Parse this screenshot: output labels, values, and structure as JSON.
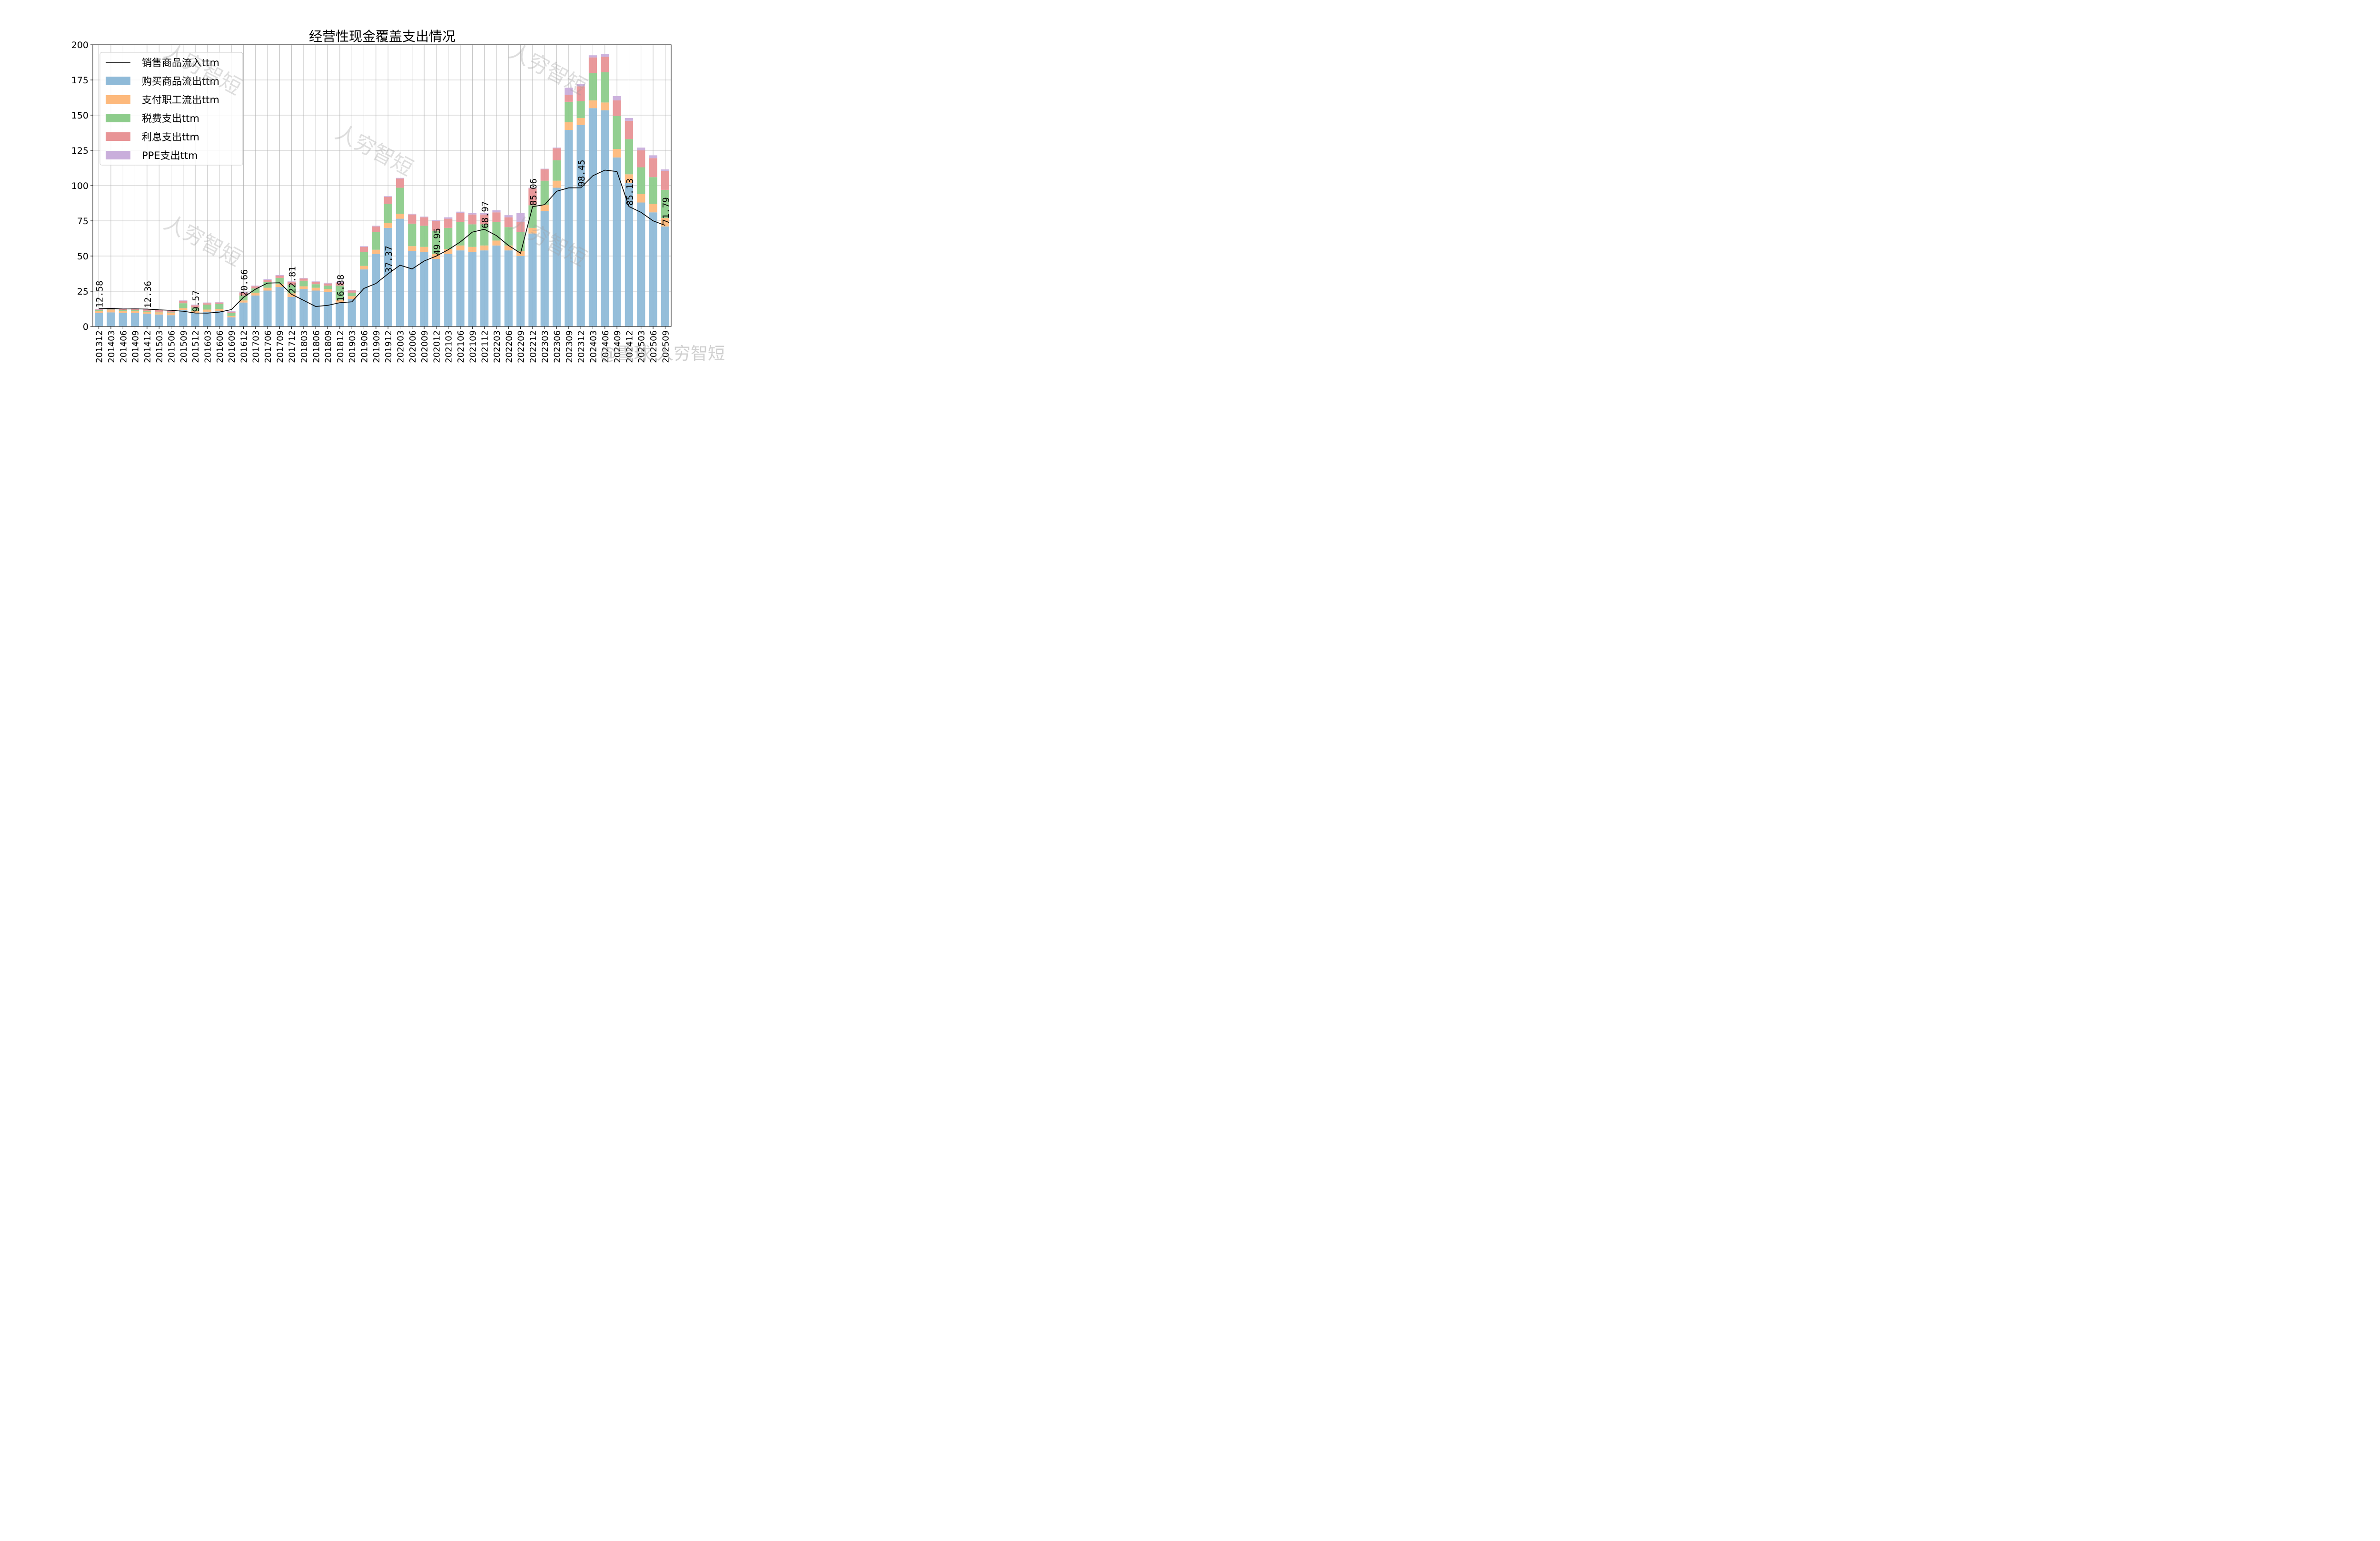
{
  "watermark": "人穷智短",
  "footer_watermark": "@雪球 人穷智短",
  "chart_data": {
    "type": "bar",
    "title": "经营性现金覆盖支出情况",
    "ylim": [
      0,
      200
    ],
    "yticks": [
      0,
      25,
      50,
      75,
      100,
      125,
      150,
      175,
      200
    ],
    "grid": true,
    "legend_placement": "top-left",
    "categories": [
      "201312",
      "201403",
      "201406",
      "201409",
      "201412",
      "201503",
      "201506",
      "201509",
      "201512",
      "201603",
      "201606",
      "201609",
      "201612",
      "201703",
      "201706",
      "201709",
      "201712",
      "201803",
      "201806",
      "201809",
      "201812",
      "201903",
      "201906",
      "201909",
      "201912",
      "202003",
      "202006",
      "202009",
      "202012",
      "202103",
      "202106",
      "202109",
      "202112",
      "202203",
      "202206",
      "202209",
      "202212",
      "202303",
      "202306",
      "202309",
      "202312",
      "202403",
      "202406",
      "202409",
      "202412",
      "202503",
      "202506",
      "202509"
    ],
    "line": {
      "name": "销售商品流入ttm",
      "color": "#000000",
      "values": [
        12.58,
        12.8,
        12.4,
        12.5,
        12.36,
        11.8,
        11.5,
        10.8,
        9.57,
        9.5,
        10.2,
        12.0,
        20.66,
        26.5,
        30.8,
        31.0,
        22.81,
        18.5,
        14.2,
        15.0,
        16.88,
        17.5,
        27.0,
        30.5,
        37.37,
        43.5,
        40.8,
        46.5,
        49.95,
        54.5,
        60.0,
        67.0,
        68.97,
        64.5,
        57.5,
        52.0,
        85.06,
        86.5,
        96.0,
        98.4,
        98.45,
        107.0,
        111.0,
        110.0,
        85.13,
        81.0,
        75.0,
        71.79
      ],
      "labels": [
        {
          "index": 0,
          "text": "12.58"
        },
        {
          "index": 4,
          "text": "12.36"
        },
        {
          "index": 8,
          "text": "9.57"
        },
        {
          "index": 12,
          "text": "20.66"
        },
        {
          "index": 16,
          "text": "22.81"
        },
        {
          "index": 20,
          "text": "16.88"
        },
        {
          "index": 24,
          "text": "37.37"
        },
        {
          "index": 28,
          "text": "49.95"
        },
        {
          "index": 32,
          "text": "68.97"
        },
        {
          "index": 36,
          "text": "85.06"
        },
        {
          "index": 40,
          "text": "98.45"
        },
        {
          "index": 44,
          "text": "85.13"
        },
        {
          "index": 47,
          "text": "71.79"
        }
      ]
    },
    "series": [
      {
        "name": "购买商品流出ttm",
        "color": "#8fbad8",
        "values": [
          9.5,
          10.0,
          9.5,
          9.5,
          9.0,
          8.5,
          8.0,
          11.5,
          9.5,
          10.5,
          11.0,
          6.5,
          17.0,
          22.0,
          25.5,
          28.0,
          21.0,
          26.5,
          25.5,
          24.5,
          17.0,
          19.5,
          40.5,
          51.5,
          70.0,
          76.5,
          53.5,
          53.0,
          48.0,
          51.5,
          54.0,
          53.0,
          54.0,
          57.5,
          54.0,
          50.0,
          66.0,
          82.0,
          98.5,
          139.5,
          143.0,
          155.0,
          153.5,
          120.0,
          102.0,
          88.0,
          81.0,
          71.0
        ]
      },
      {
        "name": "支付职工流出ttm",
        "color": "#fdb97c",
        "values": [
          1.5,
          1.5,
          1.5,
          1.5,
          1.5,
          1.5,
          1.5,
          1.5,
          1.5,
          1.5,
          1.5,
          1.0,
          1.5,
          2.0,
          2.0,
          2.0,
          2.5,
          2.0,
          2.0,
          2.0,
          2.0,
          2.0,
          2.5,
          3.0,
          3.5,
          3.5,
          3.5,
          3.5,
          3.5,
          3.5,
          3.5,
          3.5,
          3.5,
          3.5,
          3.5,
          3.5,
          4.0,
          4.5,
          5.0,
          5.5,
          5.0,
          5.5,
          5.5,
          6.0,
          6.0,
          6.0,
          6.0,
          6.0
        ]
      },
      {
        "name": "税费支出ttm",
        "color": "#8dcc8b",
        "values": [
          0.5,
          0.5,
          0.5,
          0.5,
          0.5,
          0.5,
          0.5,
          3.5,
          2.5,
          3.5,
          3.5,
          2.0,
          3.5,
          3.0,
          4.0,
          4.5,
          6.0,
          4.0,
          2.5,
          2.5,
          10.0,
          2.5,
          10.0,
          12.5,
          13.5,
          18.5,
          16.0,
          15.0,
          16.5,
          15.0,
          16.5,
          16.0,
          15.0,
          13.0,
          13.0,
          13.5,
          16.0,
          17.0,
          14.5,
          14.5,
          12.0,
          19.5,
          21.5,
          23.5,
          25.0,
          19.0,
          19.0,
          20.0
        ]
      },
      {
        "name": "利息支出ttm",
        "color": "#e89496",
        "values": [
          0.5,
          1.0,
          1.0,
          1.0,
          1.0,
          1.0,
          1.0,
          1.5,
          1.5,
          1.0,
          1.0,
          1.0,
          2.0,
          1.5,
          1.5,
          1.5,
          2.0,
          1.5,
          1.5,
          1.5,
          2.0,
          1.5,
          3.5,
          4.0,
          5.0,
          6.5,
          6.5,
          6.0,
          7.0,
          6.5,
          6.5,
          7.0,
          7.0,
          7.0,
          7.0,
          7.0,
          12.0,
          8.0,
          8.5,
          5.0,
          10.5,
          11.0,
          11.0,
          11.0,
          13.0,
          12.0,
          13.5,
          13.5
        ]
      },
      {
        "name": "PPE支出ttm",
        "color": "#c9aedb",
        "values": [
          0.3,
          0.3,
          0.3,
          0.3,
          0.3,
          0.3,
          0.3,
          0.5,
          0.5,
          0.5,
          0.5,
          0.5,
          0.5,
          0.5,
          0.5,
          0.5,
          0.5,
          0.5,
          0.5,
          0.5,
          0.5,
          0.5,
          0.5,
          0.5,
          0.5,
          0.5,
          0.5,
          0.5,
          0.5,
          1.0,
          1.0,
          1.0,
          1.0,
          1.5,
          1.5,
          6.5,
          0.5,
          0.5,
          0.5,
          5.0,
          1.5,
          1.5,
          2.0,
          3.0,
          2.0,
          2.0,
          2.0,
          1.0
        ]
      }
    ]
  }
}
